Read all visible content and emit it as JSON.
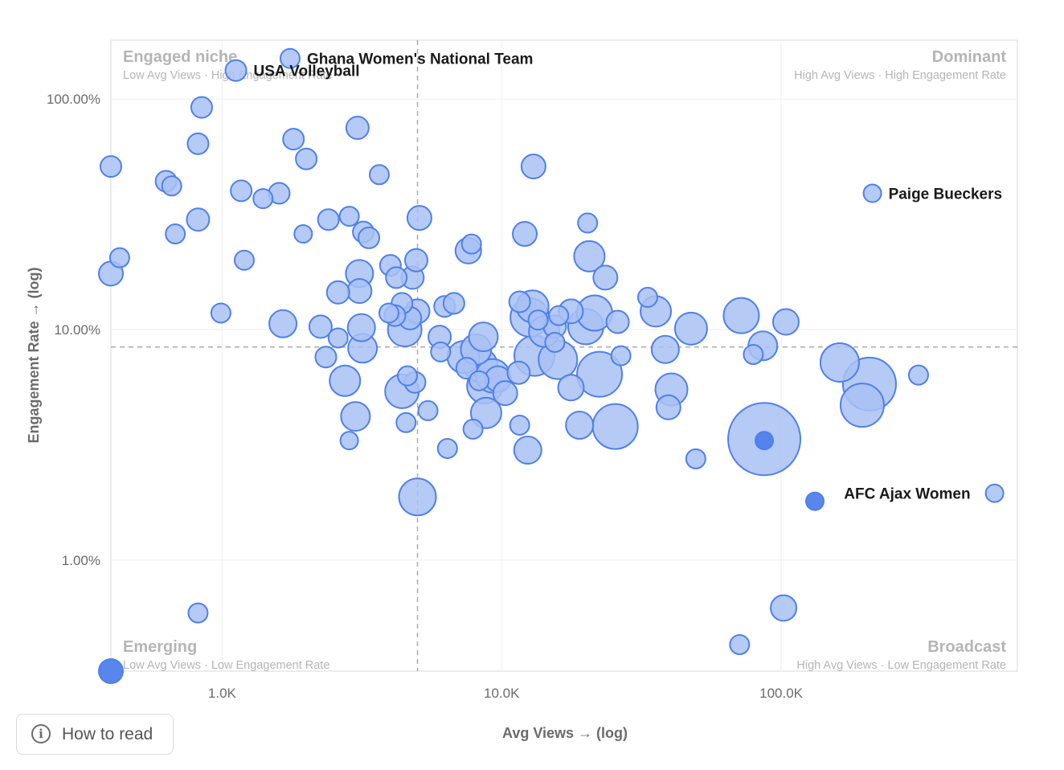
{
  "chart_data": {
    "type": "scatter",
    "xlabel": "Avg Views → (log)",
    "ylabel": "Engagement Rate → (log)",
    "x_scale": "log",
    "y_scale": "log",
    "x_ticks": [
      {
        "value": 1000,
        "label": "1.0K"
      },
      {
        "value": 10000,
        "label": "10.0K"
      },
      {
        "value": 100000,
        "label": "100.0K"
      }
    ],
    "y_ticks": [
      {
        "value": 1,
        "label": "1.00%"
      },
      {
        "value": 10,
        "label": "10.00%"
      },
      {
        "value": 100,
        "label": "100.00%"
      }
    ],
    "xlim": [
      400,
      700000
    ],
    "ylim": [
      0.33,
      180
    ],
    "grid": true,
    "reference_lines": {
      "x": 5000,
      "y": 8.4
    },
    "quadrants": [
      {
        "title": "Engaged niche",
        "subtitle": "Low Avg Views · High Engagement Rate",
        "corner": "top-left"
      },
      {
        "title": "Dominant",
        "subtitle": "High Avg Views · High Engagement Rate",
        "corner": "top-right"
      },
      {
        "title": "Emerging",
        "subtitle": "Low Avg Views · Low Engagement Rate",
        "corner": "bottom-left"
      },
      {
        "title": "Broadcast",
        "subtitle": "High Avg Views · Low Engagement Rate",
        "corner": "bottom-right"
      }
    ],
    "colors": {
      "fill": "#a9c1f5",
      "stroke": "#4f80ea",
      "solid": "#4f80ea",
      "grid": "#eeeeee",
      "refline": "#aaaaaa",
      "quadrant_text": "#b5b5b5"
    },
    "points": [
      {
        "x": 1750,
        "y": 150,
        "r": 12,
        "label": "Ghana Women's National Team"
      },
      {
        "x": 1120,
        "y": 133,
        "r": 13,
        "label": "USA Volleyball"
      },
      {
        "x": 212000,
        "y": 39,
        "r": 11,
        "label": "Paige Bueckers"
      },
      {
        "x": 580000,
        "y": 1.95,
        "r": 11,
        "label": "AFC Ajax Women"
      },
      {
        "x": 400,
        "y": 0.33,
        "r": 15,
        "solid": true
      },
      {
        "x": 132000,
        "y": 1.8,
        "r": 11,
        "solid": true
      },
      {
        "x": 87000,
        "y": 3.3,
        "r": 11,
        "solid": true
      },
      {
        "x": 845,
        "y": 92,
        "r": 13
      },
      {
        "x": 820,
        "y": 64,
        "r": 13
      },
      {
        "x": 400,
        "y": 51,
        "r": 13
      },
      {
        "x": 630,
        "y": 44,
        "r": 13
      },
      {
        "x": 660,
        "y": 42,
        "r": 12
      },
      {
        "x": 820,
        "y": 30,
        "r": 14
      },
      {
        "x": 680,
        "y": 26,
        "r": 12
      },
      {
        "x": 430,
        "y": 20.5,
        "r": 12
      },
      {
        "x": 400,
        "y": 17.5,
        "r": 15
      },
      {
        "x": 1170,
        "y": 40,
        "r": 13
      },
      {
        "x": 1400,
        "y": 37,
        "r": 12
      },
      {
        "x": 1600,
        "y": 39,
        "r": 13
      },
      {
        "x": 1800,
        "y": 67,
        "r": 13
      },
      {
        "x": 2000,
        "y": 55,
        "r": 13
      },
      {
        "x": 1950,
        "y": 26,
        "r": 11
      },
      {
        "x": 1200,
        "y": 20,
        "r": 12
      },
      {
        "x": 990,
        "y": 11.8,
        "r": 12
      },
      {
        "x": 1650,
        "y": 10.6,
        "r": 17
      },
      {
        "x": 3050,
        "y": 75,
        "r": 14
      },
      {
        "x": 3650,
        "y": 47,
        "r": 12
      },
      {
        "x": 2400,
        "y": 30,
        "r": 13
      },
      {
        "x": 2850,
        "y": 31,
        "r": 12
      },
      {
        "x": 3200,
        "y": 26.5,
        "r": 13
      },
      {
        "x": 3350,
        "y": 25,
        "r": 13
      },
      {
        "x": 4000,
        "y": 19,
        "r": 13
      },
      {
        "x": 3100,
        "y": 17.5,
        "r": 17
      },
      {
        "x": 4200,
        "y": 16.8,
        "r": 13
      },
      {
        "x": 4800,
        "y": 16.8,
        "r": 14
      },
      {
        "x": 4950,
        "y": 20,
        "r": 14
      },
      {
        "x": 5080,
        "y": 30.5,
        "r": 15
      },
      {
        "x": 2600,
        "y": 14.5,
        "r": 14
      },
      {
        "x": 3100,
        "y": 14.7,
        "r": 15
      },
      {
        "x": 4400,
        "y": 13,
        "r": 13
      },
      {
        "x": 3950,
        "y": 11.8,
        "r": 12
      },
      {
        "x": 4150,
        "y": 11.5,
        "r": 13
      },
      {
        "x": 4700,
        "y": 11.2,
        "r": 14
      },
      {
        "x": 5000,
        "y": 12,
        "r": 15
      },
      {
        "x": 2250,
        "y": 10.3,
        "r": 14
      },
      {
        "x": 2600,
        "y": 9.2,
        "r": 12
      },
      {
        "x": 3150,
        "y": 10.2,
        "r": 17
      },
      {
        "x": 3180,
        "y": 8.3,
        "r": 18
      },
      {
        "x": 4500,
        "y": 10,
        "r": 21
      },
      {
        "x": 2350,
        "y": 7.6,
        "r": 13
      },
      {
        "x": 2750,
        "y": 6,
        "r": 19
      },
      {
        "x": 3000,
        "y": 4.2,
        "r": 18
      },
      {
        "x": 2850,
        "y": 3.3,
        "r": 11
      },
      {
        "x": 4400,
        "y": 5.4,
        "r": 21
      },
      {
        "x": 4600,
        "y": 6.3,
        "r": 12
      },
      {
        "x": 4900,
        "y": 5.9,
        "r": 13
      },
      {
        "x": 4550,
        "y": 3.95,
        "r": 12
      },
      {
        "x": 5450,
        "y": 4.45,
        "r": 12
      },
      {
        "x": 5000,
        "y": 1.88,
        "r": 23
      },
      {
        "x": 6000,
        "y": 9.3,
        "r": 14
      },
      {
        "x": 6050,
        "y": 8,
        "r": 12
      },
      {
        "x": 6250,
        "y": 12.6,
        "r": 13
      },
      {
        "x": 6750,
        "y": 13,
        "r": 13
      },
      {
        "x": 6400,
        "y": 3.05,
        "r": 12
      },
      {
        "x": 7800,
        "y": 23.5,
        "r": 12
      },
      {
        "x": 7600,
        "y": 22,
        "r": 16
      },
      {
        "x": 7300,
        "y": 7.6,
        "r": 20
      },
      {
        "x": 8100,
        "y": 8.2,
        "r": 19
      },
      {
        "x": 7500,
        "y": 6.8,
        "r": 13
      },
      {
        "x": 8600,
        "y": 9.3,
        "r": 18
      },
      {
        "x": 8400,
        "y": 7,
        "r": 21
      },
      {
        "x": 8700,
        "y": 5.7,
        "r": 22
      },
      {
        "x": 9300,
        "y": 6.3,
        "r": 21
      },
      {
        "x": 9700,
        "y": 6.1,
        "r": 16
      },
      {
        "x": 10300,
        "y": 5.3,
        "r": 15
      },
      {
        "x": 8300,
        "y": 6,
        "r": 12
      },
      {
        "x": 7900,
        "y": 3.7,
        "r": 12
      },
      {
        "x": 8800,
        "y": 4.35,
        "r": 19
      },
      {
        "x": 11500,
        "y": 6.5,
        "r": 14
      },
      {
        "x": 11600,
        "y": 3.85,
        "r": 12
      },
      {
        "x": 12400,
        "y": 3.0,
        "r": 17
      },
      {
        "x": 12100,
        "y": 26,
        "r": 15
      },
      {
        "x": 13000,
        "y": 51,
        "r": 15
      },
      {
        "x": 11600,
        "y": 13.2,
        "r": 13
      },
      {
        "x": 12900,
        "y": 12.6,
        "r": 20
      },
      {
        "x": 12600,
        "y": 11.3,
        "r": 24
      },
      {
        "x": 13500,
        "y": 11,
        "r": 12
      },
      {
        "x": 14200,
        "y": 9.8,
        "r": 19
      },
      {
        "x": 13100,
        "y": 7.7,
        "r": 25
      },
      {
        "x": 15500,
        "y": 8.8,
        "r": 12
      },
      {
        "x": 15900,
        "y": 7.4,
        "r": 24
      },
      {
        "x": 15500,
        "y": 10.3,
        "r": 14
      },
      {
        "x": 16000,
        "y": 11.5,
        "r": 12
      },
      {
        "x": 17700,
        "y": 12,
        "r": 15
      },
      {
        "x": 17700,
        "y": 5.6,
        "r": 16
      },
      {
        "x": 19000,
        "y": 3.85,
        "r": 17
      },
      {
        "x": 20300,
        "y": 29,
        "r": 12
      },
      {
        "x": 20600,
        "y": 20.8,
        "r": 19
      },
      {
        "x": 20000,
        "y": 10.3,
        "r": 22
      },
      {
        "x": 21500,
        "y": 11.8,
        "r": 22
      },
      {
        "x": 22400,
        "y": 6.4,
        "r": 28
      },
      {
        "x": 23500,
        "y": 16.8,
        "r": 15
      },
      {
        "x": 26000,
        "y": 10.8,
        "r": 14
      },
      {
        "x": 26700,
        "y": 7.7,
        "r": 12
      },
      {
        "x": 25500,
        "y": 3.8,
        "r": 28
      },
      {
        "x": 33300,
        "y": 13.8,
        "r": 12
      },
      {
        "x": 35600,
        "y": 12,
        "r": 19
      },
      {
        "x": 38500,
        "y": 8.2,
        "r": 17
      },
      {
        "x": 40500,
        "y": 5.5,
        "r": 20
      },
      {
        "x": 39500,
        "y": 4.6,
        "r": 15
      },
      {
        "x": 47600,
        "y": 10.1,
        "r": 20
      },
      {
        "x": 49500,
        "y": 2.75,
        "r": 12
      },
      {
        "x": 72000,
        "y": 11.5,
        "r": 22
      },
      {
        "x": 79500,
        "y": 7.8,
        "r": 12
      },
      {
        "x": 86000,
        "y": 8.5,
        "r": 18
      },
      {
        "x": 87000,
        "y": 3.35,
        "r": 45
      },
      {
        "x": 104000,
        "y": 10.8,
        "r": 16
      },
      {
        "x": 102000,
        "y": 0.62,
        "r": 16
      },
      {
        "x": 71000,
        "y": 0.43,
        "r": 12
      },
      {
        "x": 162000,
        "y": 7.2,
        "r": 24
      },
      {
        "x": 195000,
        "y": 4.7,
        "r": 27
      },
      {
        "x": 207000,
        "y": 5.8,
        "r": 33
      },
      {
        "x": 310000,
        "y": 6.35,
        "r": 12
      },
      {
        "x": 820,
        "y": 0.59,
        "r": 12
      }
    ]
  },
  "ui": {
    "how_to_read_label": "How to read",
    "info_icon": "i"
  }
}
